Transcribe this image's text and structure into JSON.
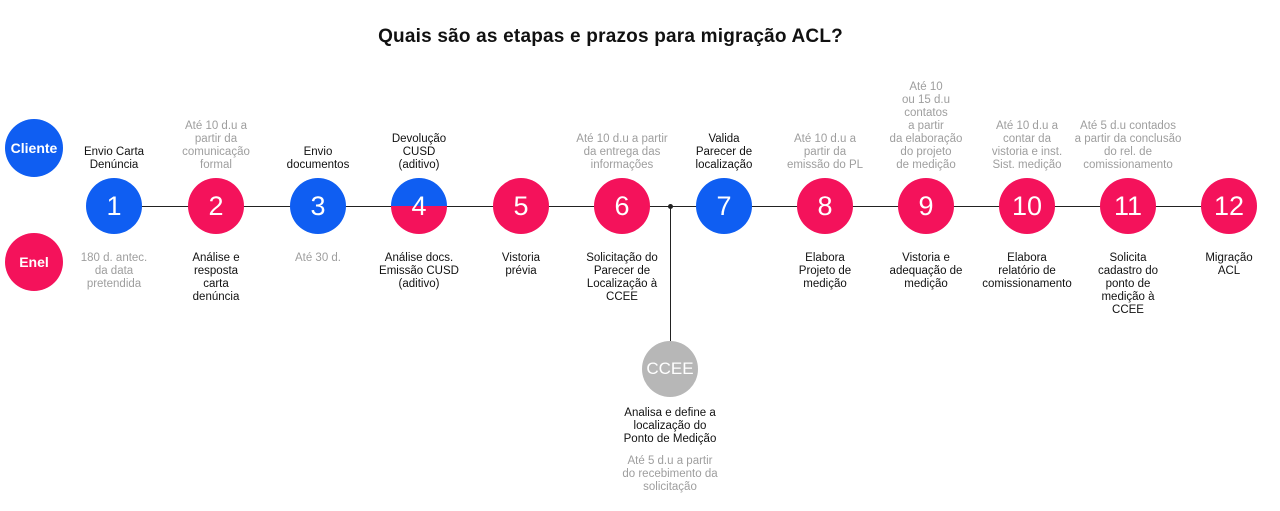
{
  "title": "Quais são as etapas e prazos para migração  ACL?",
  "roles": {
    "client": {
      "label": "Cliente",
      "color": "#0f5ef2"
    },
    "enel": {
      "label": "Enel",
      "color": "#f4125b"
    }
  },
  "colors": {
    "blue": "#0f5ef2",
    "red": "#f4125b",
    "gray": "#b7b7b7"
  },
  "steps": [
    {
      "num": "1",
      "top": "Envio Carta\nDenúncia",
      "bottom": "180 d. antec.\nda data\npretendida"
    },
    {
      "num": "2",
      "top": "Até 10 d.u a\npartir da\ncomunicação\nformal",
      "bottom": "Análise e\nresposta\ncarta\ndenúncia"
    },
    {
      "num": "3",
      "top": "Envio\ndocumentos",
      "bottom": "Até 30 d."
    },
    {
      "num": "4",
      "top": "Devolução\nCUSD\n(aditivo)",
      "bottom": "Análise docs.\nEmissão CUSD\n(aditivo)"
    },
    {
      "num": "5",
      "top": "",
      "bottom": "Vistoria\nprévia"
    },
    {
      "num": "6",
      "top": "Até 10 d.u a partir\nda entrega das\ninformações",
      "bottom": "Solicitação do\nParecer de\nLocalização à\nCCEE"
    },
    {
      "num": "7",
      "top": "Valida\nParecer de\nlocalização",
      "bottom": ""
    },
    {
      "num": "8",
      "top": "Até 10 d.u a\npartir da\nemissão do PL",
      "bottom": "Elabora\nProjeto de\nmedição"
    },
    {
      "num": "9",
      "top": "Até 10\nou 15 d.u\ncontatos\na partir\nda elaboração\ndo projeto\nde medição",
      "bottom": "Vistoria e\nadequação de\nmedição"
    },
    {
      "num": "10",
      "top": "Até 10 d.u a\ncontar da\nvistoria e inst.\nSist. medição",
      "bottom": "Elabora\nrelatório de\ncomissionamento"
    },
    {
      "num": "11",
      "top": "Até 5 d.u contados\na partir da conclusão\ndo rel. de\ncomissionamento",
      "bottom": "Solicita\ncadastro do\nponto de\nmedição à\nCCEE"
    },
    {
      "num": "12",
      "top": "",
      "bottom": "Migração\nACL"
    }
  ],
  "ccee": {
    "label": "CCEE",
    "action": "Analisa e define a\nlocalização do\nPonto de Medição",
    "deadline": "Até 5 d.u a partir\ndo recebimento da\nsolicitação"
  }
}
